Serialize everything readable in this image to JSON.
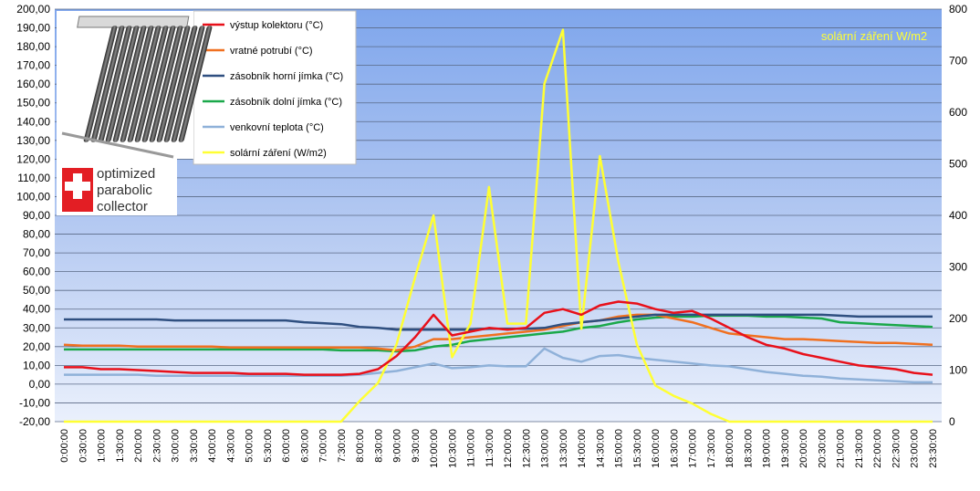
{
  "chart_data": {
    "type": "line",
    "title": "",
    "series_annotation": "solární záření W/m2",
    "x": [
      "0:00:00",
      "0:30:00",
      "1:00:00",
      "1:30:00",
      "2:00:00",
      "2:30:00",
      "3:00:00",
      "3:30:00",
      "4:00:00",
      "4:30:00",
      "5:00:00",
      "5:30:00",
      "6:00:00",
      "6:30:00",
      "7:00:00",
      "7:30:00",
      "8:00:00",
      "8:30:00",
      "9:00:00",
      "9:30:00",
      "10:00:00",
      "10:30:00",
      "11:00:00",
      "11:30:00",
      "12:00:00",
      "12:30:00",
      "13:00:00",
      "13:30:00",
      "14:00:00",
      "14:30:00",
      "15:00:00",
      "15:30:00",
      "16:00:00",
      "16:30:00",
      "17:00:00",
      "17:30:00",
      "18:00:00",
      "18:30:00",
      "19:00:00",
      "19:30:00",
      "20:00:00",
      "20:30:00",
      "21:00:00",
      "21:30:00",
      "22:00:00",
      "22:30:00",
      "23:00:00",
      "23:30:00"
    ],
    "y_left": {
      "min": -20,
      "max": 200,
      "step": 10
    },
    "y_right": {
      "min": 0,
      "max": 800,
      "step": 100
    },
    "grid": true,
    "legend_position": "top-left",
    "series": [
      {
        "name": "výstup kolektoru (°C)",
        "axis": "left",
        "color": "#e8101a",
        "values": [
          9,
          9,
          8,
          8,
          7.5,
          7,
          6.5,
          6,
          6,
          6,
          5.5,
          5.5,
          5.5,
          5,
          5,
          5,
          5.5,
          8,
          15,
          25,
          37,
          26,
          28,
          30,
          29,
          30,
          38,
          40,
          37,
          42,
          44,
          43,
          40,
          38,
          39,
          35,
          30,
          25,
          21,
          19,
          16,
          14,
          12,
          10,
          9,
          8,
          6,
          5
        ]
      },
      {
        "name": "vratné potrubí (°C)",
        "axis": "left",
        "color": "#f07020",
        "values": [
          21,
          20.5,
          20.5,
          20.5,
          20,
          20,
          20,
          20,
          20,
          19.5,
          19.5,
          19.5,
          19.5,
          19.5,
          19.5,
          19.5,
          19.5,
          19,
          18,
          20,
          24,
          24,
          25,
          26,
          27,
          28,
          29,
          31,
          33,
          34,
          36,
          37,
          37,
          35,
          33,
          30,
          27,
          26,
          25,
          24,
          24,
          23.5,
          23,
          22.5,
          22,
          22,
          21.5,
          21
        ]
      },
      {
        "name": "zásobník horní jímka (°C)",
        "axis": "left",
        "color": "#2f4f80",
        "values": [
          34.5,
          34.5,
          34.5,
          34.5,
          34.5,
          34.5,
          34,
          34,
          34,
          34,
          34,
          34,
          34,
          33,
          32.5,
          32,
          30.5,
          30,
          29,
          29,
          29,
          29,
          29,
          29.5,
          29.5,
          29.5,
          30,
          32,
          33,
          34,
          35,
          36,
          37,
          37,
          37,
          37,
          37,
          37,
          37,
          37,
          37,
          37,
          36.5,
          36,
          36,
          36,
          36,
          36
        ]
      },
      {
        "name": "zásobník dolní jímka (°C)",
        "axis": "left",
        "color": "#1aa84a",
        "values": [
          18.5,
          18.5,
          18.5,
          18.5,
          18.5,
          18.5,
          18.5,
          18.5,
          18.5,
          18.5,
          18.5,
          18.5,
          18.5,
          18.5,
          18.5,
          18,
          18,
          18,
          17.5,
          18,
          20,
          21,
          23,
          24,
          25,
          26,
          27,
          28,
          30,
          31,
          33,
          34.5,
          35.5,
          36,
          36,
          36.5,
          36.5,
          36.5,
          36,
          36,
          35.5,
          35,
          33,
          32.5,
          32,
          31.5,
          31,
          30.5
        ]
      },
      {
        "name": "venkovní teplota (°C)",
        "axis": "left",
        "color": "#8fb1d9",
        "values": [
          5,
          5,
          5,
          5,
          5,
          4.5,
          4.5,
          4.5,
          4.5,
          4.5,
          4.5,
          4.5,
          4.5,
          4.5,
          4.5,
          4.5,
          5,
          6,
          7,
          9,
          11,
          8.5,
          9,
          10,
          9.5,
          9.5,
          19,
          14,
          12,
          15,
          15.5,
          14,
          13,
          12,
          11,
          10,
          9.5,
          8,
          6.5,
          5.5,
          4.5,
          4,
          3,
          2.5,
          2,
          1.5,
          1,
          1
        ]
      },
      {
        "name": "solární záření (W/m2)",
        "axis": "right",
        "color": "#ffff33",
        "values": [
          0,
          0,
          0,
          0,
          0,
          0,
          0,
          0,
          0,
          0,
          0,
          0,
          0,
          0,
          0,
          0,
          40,
          75,
          150,
          280,
          400,
          125,
          190,
          455,
          190,
          190,
          655,
          760,
          180,
          515,
          310,
          150,
          70,
          50,
          35,
          15,
          0,
          0,
          0,
          0,
          0,
          0,
          0,
          0,
          0,
          0,
          0,
          0
        ]
      }
    ]
  },
  "logo": {
    "lines": [
      "optimized",
      "parabolic",
      "collector"
    ],
    "badge_color": "#e31e24"
  }
}
